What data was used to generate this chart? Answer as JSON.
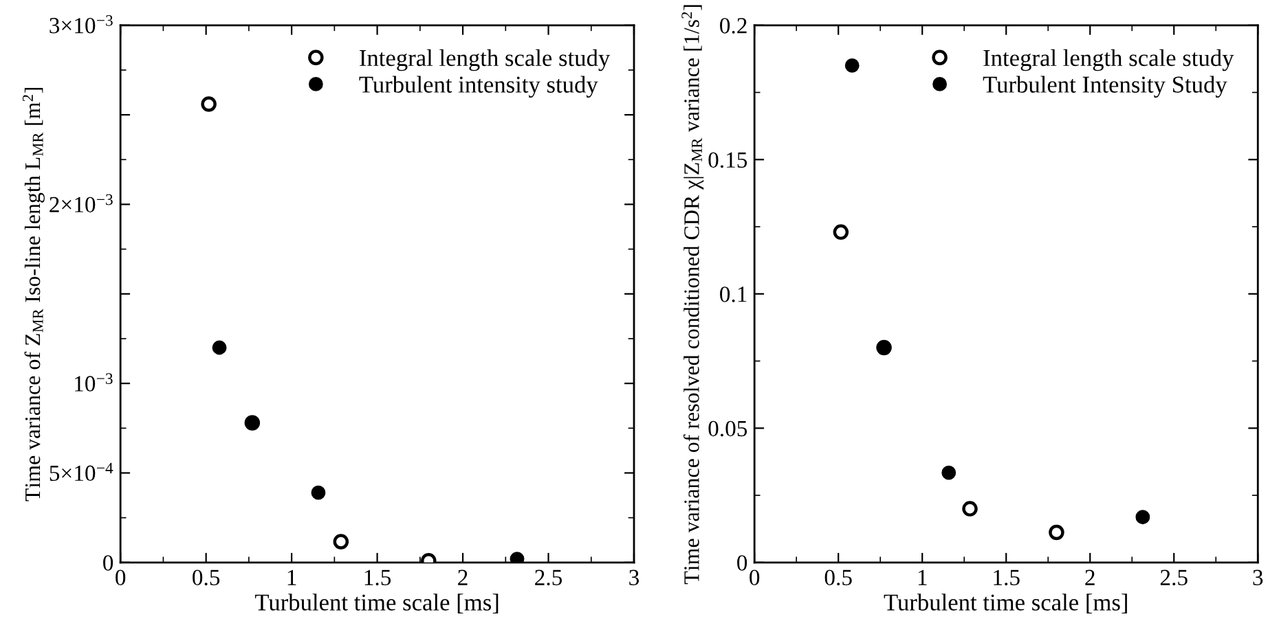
{
  "chart_data": [
    {
      "type": "scatter",
      "xlabel": "Turbulent time scale [ms]",
      "ylabel": "Time variance of Z$_{MR}$ Iso-line length L$_{MR}$ [m$^{2}$]",
      "xlim": [
        0,
        3
      ],
      "xticks": [
        0,
        0.5,
        1,
        1.5,
        2,
        2.5,
        3
      ],
      "ylim": [
        0,
        0.003
      ],
      "yticks": [
        {
          "value": 0,
          "label": "0"
        },
        {
          "value": 0.0005,
          "label": "5×10$^{−4}$"
        },
        {
          "value": 0.001,
          "label": "10$^{−3}$"
        },
        {
          "value": 0.0015,
          "label": null
        },
        {
          "value": 0.002,
          "label": "2×10$^{−3}$"
        },
        {
          "value": 0.0025,
          "label": null
        },
        {
          "value": 0.003,
          "label": "3×10$^{−3}$"
        }
      ],
      "legend": "top right",
      "grid": false,
      "series": [
        {
          "name": "Integral length scale study",
          "color": "#000000",
          "marker": "open circle",
          "x": [
            0.516,
            0.77,
            1.288,
            1.8
          ],
          "values": [
            0.00256,
            0.00078,
            0.000116,
            1e-05
          ]
        },
        {
          "name": "Turbulent intensity study",
          "color": "#000000",
          "marker": "circle",
          "x": [
            0.578,
            0.77,
            1.156,
            2.317
          ],
          "values": [
            0.0012,
            0.00078,
            0.00039,
            2e-05
          ]
        }
      ]
    },
    {
      "type": "scatter",
      "xlabel": "Turbulent time scale [ms]",
      "ylabel": "Time variance of resolved conditioned CDR χ|Z$_{MR}$ variance [1/s$^{2}$]",
      "xlim": [
        0,
        3
      ],
      "xticks": [
        0,
        0.5,
        1,
        1.5,
        2,
        2.5,
        3
      ],
      "ylim": [
        0,
        0.2
      ],
      "yticks": [
        0,
        0.05,
        0.1,
        0.15,
        0.2
      ],
      "legend": "top right",
      "grid": false,
      "series": [
        {
          "name": "Integral length scale study",
          "color": "#000000",
          "marker": "open circle",
          "x": [
            0.515,
            0.772,
            1.284,
            1.8
          ],
          "values": [
            0.123,
            0.08,
            0.02,
            0.0112
          ]
        },
        {
          "name": "Turbulent Intensity Study",
          "color": "#000000",
          "marker": "circle",
          "x": [
            0.582,
            0.772,
            1.158,
            2.314
          ],
          "values": [
            0.185,
            0.08,
            0.0334,
            0.0169
          ]
        }
      ]
    }
  ]
}
